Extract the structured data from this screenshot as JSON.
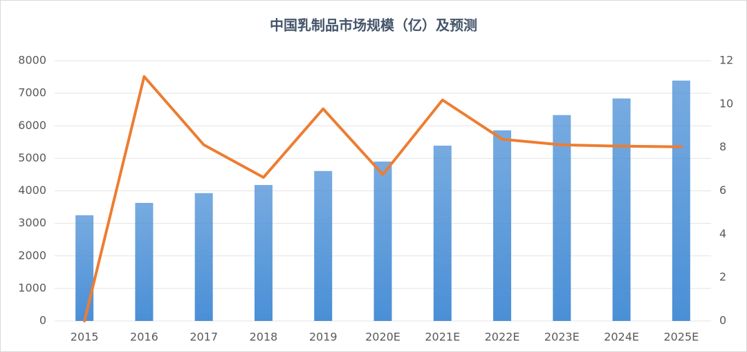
{
  "chart_data": {
    "type": "bar-line",
    "title": "中国乳制品市场规模（亿）及预测",
    "categories": [
      "2015",
      "2016",
      "2017",
      "2018",
      "2019",
      "2020E",
      "2021E",
      "2022E",
      "2023E",
      "2024E",
      "2025E"
    ],
    "series": [
      {
        "type": "bar",
        "color": "#4a8fd6",
        "values": [
          3250,
          3630,
          3930,
          4180,
          4610,
          4900,
          5390,
          5860,
          6330,
          6840,
          7390
        ]
      },
      {
        "type": "line",
        "axis": "y2",
        "color": "#ed7d31",
        "values": [
          0,
          11.27,
          8.12,
          6.62,
          9.78,
          6.75,
          10.19,
          8.38,
          8.12,
          8.06,
          8.03
        ]
      }
    ],
    "ylim": [
      0,
      8000
    ],
    "yticks": [
      0,
      1000,
      2000,
      3000,
      4000,
      5000,
      6000,
      7000,
      8000
    ],
    "y2lim": [
      0,
      12
    ],
    "y2ticks": [
      0,
      2,
      4,
      6,
      8,
      10,
      12
    ],
    "grid": true
  }
}
